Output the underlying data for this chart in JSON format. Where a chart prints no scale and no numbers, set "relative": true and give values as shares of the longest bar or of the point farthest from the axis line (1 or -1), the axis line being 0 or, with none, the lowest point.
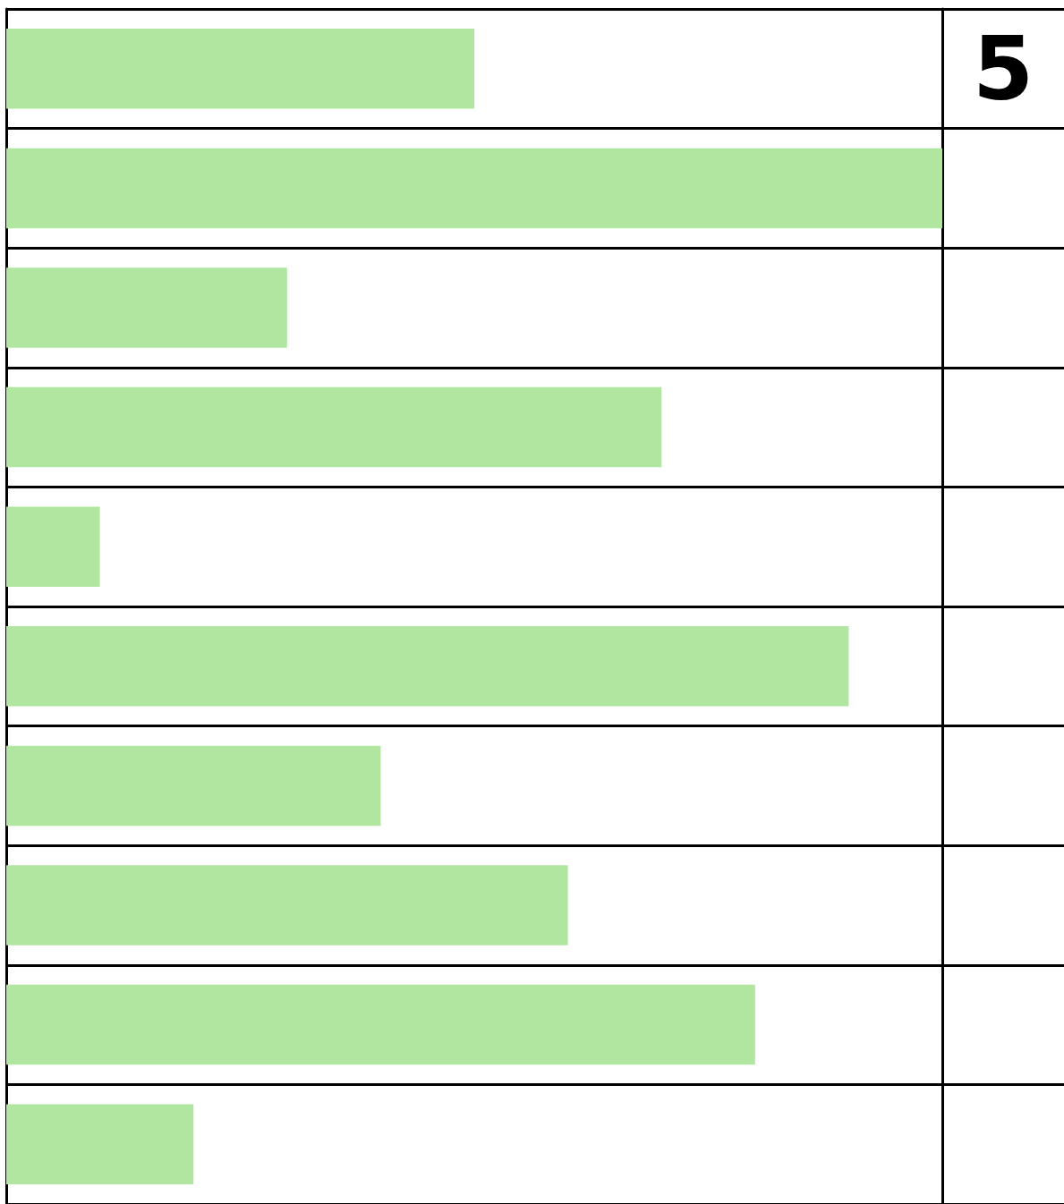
{
  "chart_data": {
    "type": "bar",
    "orientation": "horizontal",
    "relative": true,
    "categories": [
      null,
      null,
      null,
      null,
      null,
      null,
      null,
      null,
      null,
      null
    ],
    "values": [
      0.5,
      1,
      0.3,
      0.7,
      0.1,
      0.9,
      0.4,
      0.6,
      0.8,
      0.2
    ],
    "color": "#b0e6a0",
    "annotations": [
      "5"
    ],
    "grid": "y",
    "tick_labels": false
  }
}
